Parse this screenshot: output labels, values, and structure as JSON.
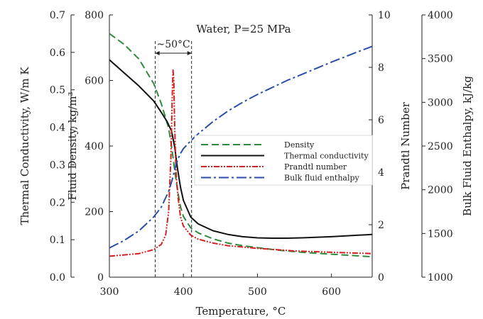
{
  "chart_data": {
    "type": "line",
    "title": "Water, P=25 MPa",
    "xlabel": "Temperature, °C",
    "xlim": [
      300,
      655
    ],
    "xticks": [
      "300",
      "400",
      "500",
      "600"
    ],
    "axes": {
      "conductivity": {
        "label": "Thermal Conductivity, W/m K",
        "range": [
          0.0,
          0.7
        ],
        "ticks": [
          "0.0",
          "0.1",
          "0.2",
          "0.3",
          "0.4",
          "0.5",
          "0.6",
          "0.7"
        ]
      },
      "density": {
        "label": "Fluid Density, kg/m³",
        "range": [
          0,
          800
        ],
        "ticks": [
          "0",
          "200",
          "400",
          "600",
          "800"
        ]
      },
      "prandtl": {
        "label": "Prandtl Number",
        "range": [
          0,
          10
        ],
        "ticks": [
          "0",
          "2",
          "4",
          "6",
          "8",
          "10"
        ]
      },
      "enthalpy": {
        "label": "Bulk Fluid Enthalpy, kJ/kg",
        "range": [
          1000,
          4000
        ],
        "ticks": [
          "1000",
          "1500",
          "2000",
          "2500",
          "3000",
          "3500",
          "4000"
        ]
      }
    },
    "annotation": {
      "text": "~50°C",
      "x_start": 362,
      "x_end": 411
    },
    "legend_position": "center-right",
    "series": [
      {
        "name": "Density",
        "axis": "density",
        "color": "#2e8b3e",
        "dash": "10,5",
        "x": [
          300,
          320,
          340,
          360,
          370,
          380,
          384,
          388,
          392,
          396,
          400,
          410,
          420,
          440,
          460,
          480,
          500,
          530,
          560,
          600,
          630,
          655
        ],
        "y": [
          743,
          710,
          665,
          590,
          530,
          455,
          400,
          330,
          265,
          215,
          185,
          150,
          135,
          117,
          104,
          96,
          90,
          82,
          76,
          70,
          66,
          62
        ]
      },
      {
        "name": "Thermal conductivity",
        "axis": "conductivity",
        "color": "#111111",
        "dash": "",
        "x": [
          300,
          320,
          340,
          360,
          370,
          378,
          384,
          388,
          392,
          396,
          400,
          410,
          420,
          440,
          460,
          480,
          500,
          520,
          540,
          560,
          600,
          655
        ],
        "y": [
          0.58,
          0.545,
          0.51,
          0.47,
          0.44,
          0.415,
          0.39,
          0.35,
          0.29,
          0.24,
          0.205,
          0.16,
          0.142,
          0.124,
          0.114,
          0.108,
          0.105,
          0.104,
          0.104,
          0.105,
          0.108,
          0.114
        ]
      },
      {
        "name": "Prandtl number",
        "axis": "prandtl",
        "color": "#d42020",
        "dash": "8,2,2,2,2,2",
        "x": [
          300,
          320,
          340,
          360,
          370,
          376,
          380,
          383,
          385,
          386,
          387,
          388,
          390,
          393,
          396,
          400,
          410,
          420,
          440,
          460,
          500,
          550,
          600,
          655
        ],
        "y": [
          0.8,
          0.85,
          0.9,
          1.05,
          1.25,
          1.6,
          2.5,
          4.5,
          7.0,
          7.9,
          7.5,
          6.0,
          4.0,
          3.0,
          2.3,
          1.95,
          1.6,
          1.45,
          1.3,
          1.2,
          1.1,
          1.0,
          0.95,
          0.9
        ]
      },
      {
        "name": "Bulk fluid enthalpy",
        "axis": "enthalpy",
        "color": "#2a4fa8",
        "dash": "14,4,3,4",
        "x": [
          300,
          320,
          340,
          360,
          370,
          380,
          385,
          390,
          395,
          400,
          410,
          420,
          440,
          460,
          480,
          500,
          520,
          540,
          560,
          600,
          630,
          655
        ],
        "y": [
          1335,
          1420,
          1530,
          1690,
          1800,
          1980,
          2120,
          2290,
          2400,
          2470,
          2560,
          2640,
          2780,
          2900,
          3000,
          3090,
          3170,
          3250,
          3320,
          3460,
          3560,
          3640
        ]
      }
    ]
  }
}
